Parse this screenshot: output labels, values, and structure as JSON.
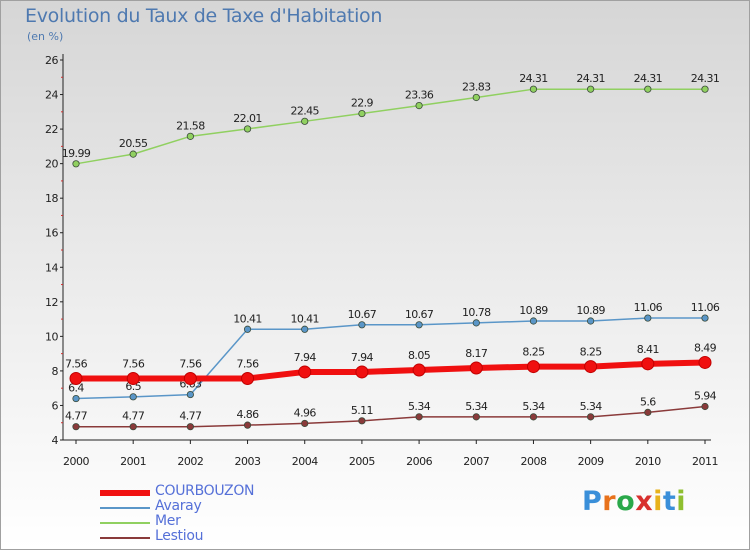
{
  "header": {
    "title": "Evolution du Taux de Taxe d'Habitation",
    "subtitle": "(en %)"
  },
  "logo": {
    "letters": [
      "P",
      "r",
      "o",
      "x",
      "i",
      "t",
      "i"
    ],
    "colors": [
      "#3a8fd9",
      "#e8721c",
      "#2aa84a",
      "#d8302e",
      "#e8b21c",
      "#3a8fd9",
      "#8fbf30"
    ]
  },
  "chart_data": {
    "type": "line",
    "x": [
      "2000",
      "2001",
      "2002",
      "2003",
      "2004",
      "2005",
      "2006",
      "2007",
      "2008",
      "2009",
      "2010",
      "2011"
    ],
    "ylim": [
      4,
      26
    ],
    "yticks": [
      "4",
      "6",
      "8",
      "10",
      "12",
      "14",
      "16",
      "18",
      "20",
      "22",
      "24",
      "26"
    ],
    "grid": false,
    "legend_position": "bottom-left",
    "series": [
      {
        "name": "Mer",
        "color": "#90d060",
        "width": 1.5,
        "values": [
          19.99,
          20.55,
          21.58,
          22.01,
          22.45,
          22.9,
          23.36,
          23.83,
          24.31,
          24.31,
          24.31,
          24.31
        ],
        "labels": [
          "19.99",
          "20.55",
          "21.58",
          "22.01",
          "22.45",
          "22.9",
          "23.36",
          "23.83",
          "24.31",
          "24.31",
          "24.31",
          "24.31"
        ]
      },
      {
        "name": "Avaray",
        "color": "#5a96c8",
        "width": 1.5,
        "values": [
          6.4,
          6.5,
          6.63,
          10.41,
          10.41,
          10.67,
          10.67,
          10.78,
          10.89,
          10.89,
          11.06,
          11.06
        ],
        "labels": [
          "6.4",
          "6.5",
          "6.63",
          "10.41",
          "10.41",
          "10.67",
          "10.67",
          "10.78",
          "10.89",
          "10.89",
          "11.06",
          "11.06"
        ]
      },
      {
        "name": "Lestiou",
        "color": "#8a3a3a",
        "width": 1.5,
        "values": [
          4.77,
          4.77,
          4.77,
          4.86,
          4.96,
          5.11,
          5.34,
          5.34,
          5.34,
          5.34,
          5.6,
          5.94
        ],
        "labels": [
          "4.77",
          "4.77",
          "4.77",
          "4.86",
          "4.96",
          "5.11",
          "5.34",
          "5.34",
          "5.34",
          "5.34",
          "5.6",
          "5.94"
        ]
      },
      {
        "name": "COURBOUZON",
        "color": "#f01010",
        "width": 6,
        "values": [
          7.56,
          7.56,
          7.56,
          7.56,
          7.94,
          7.94,
          8.05,
          8.17,
          8.25,
          8.25,
          8.41,
          8.49
        ],
        "labels": [
          "7.56",
          "7.56",
          "7.56",
          "7.56",
          "7.94",
          "7.94",
          "8.05",
          "8.17",
          "8.25",
          "8.25",
          "8.41",
          "8.49"
        ]
      }
    ],
    "legend": [
      {
        "name": "COURBOUZON",
        "color": "#f01010",
        "width": 6
      },
      {
        "name": "Avaray",
        "color": "#5a96c8",
        "width": 1.5
      },
      {
        "name": "Mer",
        "color": "#90d060",
        "width": 1.5
      },
      {
        "name": "Lestiou",
        "color": "#8a3a3a",
        "width": 1.5
      }
    ]
  }
}
